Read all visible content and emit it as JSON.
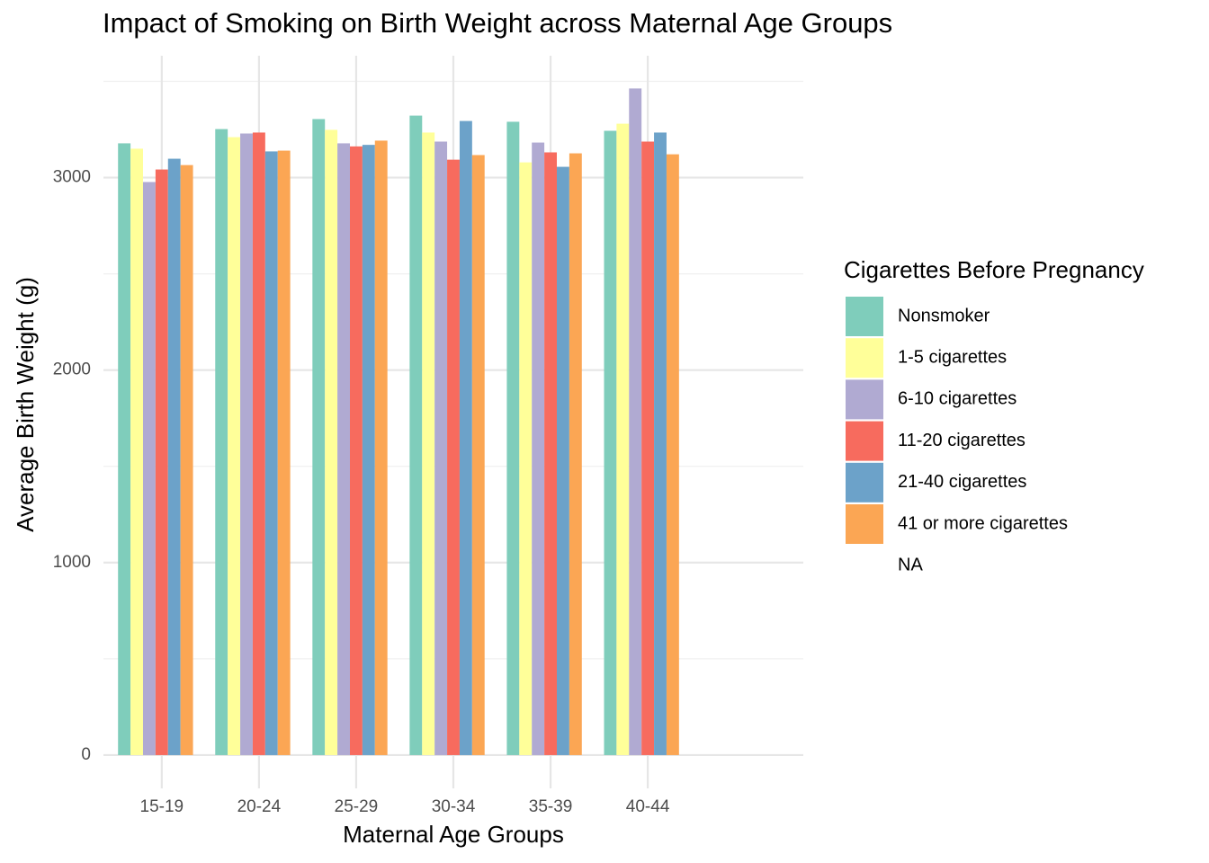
{
  "chart_data": {
    "type": "bar",
    "title": "Impact of Smoking on Birth Weight across Maternal Age Groups",
    "x_label": "Maternal Age Groups",
    "y_label": "Average Birth Weight (g)",
    "legend_title": "Cigarettes Before Pregnancy",
    "legend_position": "right",
    "grid": true,
    "categories": [
      "15-19",
      "20-24",
      "25-29",
      "30-34",
      "35-39",
      "40-44"
    ],
    "series": [
      {
        "name": "Nonsmoker",
        "color": "#7fcdbb",
        "values": [
          3178,
          3252,
          3304,
          3322,
          3290,
          3243
        ]
      },
      {
        "name": "1-5 cigarettes",
        "color": "#ffff99",
        "values": [
          3150,
          3210,
          3248,
          3234,
          3079,
          3280
        ]
      },
      {
        "name": "6-10 cigarettes",
        "color": "#b0aad2",
        "values": [
          2977,
          3229,
          3178,
          3187,
          3182,
          3463
        ]
      },
      {
        "name": "11-20 cigarettes",
        "color": "#f76b5e",
        "values": [
          3042,
          3234,
          3162,
          3093,
          3131,
          3187
        ]
      },
      {
        "name": "21-40 cigarettes",
        "color": "#6ca2c9",
        "values": [
          3098,
          3136,
          3170,
          3294,
          3056,
          3234
        ]
      },
      {
        "name": "41 or more cigarettes",
        "color": "#fba654",
        "values": [
          3065,
          3140,
          3192,
          3117,
          3126,
          3121
        ]
      },
      {
        "name": "NA",
        "color": null,
        "values": [
          null,
          null,
          null,
          null,
          null,
          null
        ]
      }
    ],
    "ylim": [
      -173,
      3633
    ],
    "yticks": [
      0,
      1000,
      2000,
      3000
    ],
    "minor_yticks": [
      500,
      1500,
      2500,
      3500
    ]
  }
}
